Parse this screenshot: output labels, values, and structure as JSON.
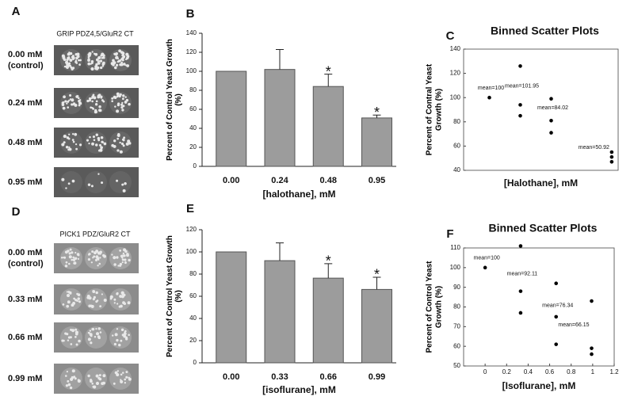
{
  "plates": [
    {
      "panel": "A",
      "title": "GRIP PDZ4,5/GluR2 CT",
      "rows": [
        [
          "0.00 mM",
          "(control)"
        ],
        [
          "0.24 mM"
        ],
        [
          "0.48 mM"
        ],
        [
          "0.95 mM"
        ]
      ]
    },
    {
      "panel": "D",
      "title": "PICK1 PDZ/GluR2 CT",
      "rows": [
        [
          "0.00 mM",
          "(control)"
        ],
        [
          "0.33 mM"
        ],
        [
          "0.66 mM"
        ],
        [
          "0.99 mM"
        ]
      ]
    }
  ],
  "chart_data": [
    {
      "type": "bar",
      "panel": "B",
      "y_label": "Percent of Control Yeast Growth (%)",
      "x_label": "[halothane], mM",
      "categories": [
        "0.00",
        "0.24",
        "0.48",
        "0.95"
      ],
      "values": [
        100,
        101.95,
        84.02,
        50.92
      ],
      "errors": [
        0,
        21,
        13,
        3
      ],
      "star_label": "*",
      "starred": [
        false,
        false,
        true,
        true
      ],
      "color": "#9c9c9c",
      "ylim": [
        0,
        140
      ],
      "yticks": [
        0,
        20,
        40,
        60,
        80,
        100,
        120,
        140
      ]
    },
    {
      "type": "scatter",
      "panel": "C",
      "title": "Binned Scatter Plots",
      "y_label": "Percent of Contral Yeast Growth (%)",
      "x_label": "[Halothane], mM",
      "x": [
        0,
        0.24,
        0.24,
        0.24,
        0.48,
        0.48,
        0.48,
        0.95,
        0.95,
        0.95
      ],
      "values": [
        100,
        126,
        94,
        85,
        99,
        81,
        71,
        55,
        51,
        47
      ],
      "annotations": [
        "mean=100",
        "mean=101.95",
        "mean=84.02",
        "mean=50.92"
      ],
      "color": "#000000",
      "xlim": [
        -0.2,
        1.0
      ],
      "ylim": [
        40,
        140
      ],
      "yticks": [
        40,
        60,
        80,
        100,
        120,
        140
      ]
    },
    {
      "type": "bar",
      "panel": "E",
      "y_label": "Percent of Control Yeast Growth (%)",
      "x_label": "[isoflurane], mM",
      "categories": [
        "0.00",
        "0.33",
        "0.66",
        "0.99"
      ],
      "values": [
        100,
        92.11,
        76.34,
        66.15
      ],
      "errors": [
        0,
        16,
        13,
        11
      ],
      "star_label": "*",
      "starred": [
        false,
        false,
        true,
        true
      ],
      "color": "#9c9c9c",
      "ylim": [
        0,
        120
      ],
      "yticks": [
        0,
        20,
        40,
        60,
        80,
        100,
        120
      ]
    },
    {
      "type": "scatter",
      "panel": "F",
      "title": "Binned Scatter Plots",
      "y_label": "Percent of Control Yeast Growth (%)",
      "x_label": "[Isoflurane], mM",
      "x": [
        0,
        0.33,
        0.33,
        0.33,
        0.66,
        0.66,
        0.66,
        0.99,
        0.99,
        0.99
      ],
      "values": [
        100,
        111,
        88,
        77,
        92,
        75,
        61,
        83,
        59,
        56
      ],
      "annotations": [
        "mean=100",
        "mean=92.11",
        "mean=76.34",
        "mean=66.15"
      ],
      "color": "#000000",
      "xlim": [
        -0.2,
        1.2
      ],
      "xticks": [
        0,
        0.2,
        0.4,
        0.6,
        0.8,
        1,
        1.2
      ],
      "ylim": [
        50,
        110
      ],
      "yticks": [
        50,
        60,
        70,
        80,
        90,
        100,
        110
      ]
    }
  ]
}
